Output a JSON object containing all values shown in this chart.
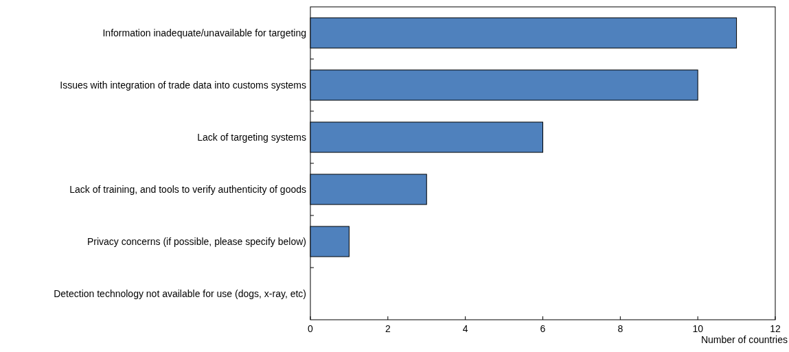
{
  "chart_data": {
    "type": "bar",
    "orientation": "horizontal",
    "xlabel": "Number of countries",
    "categories": [
      "Information inadequate/unavailable for targeting",
      "Issues with integration of trade data into customs systems",
      "Lack of targeting systems",
      "Lack of training, and tools to verify authenticity of goods",
      "Privacy concerns (if possible, please specify below)",
      "Detection technology not available for use (dogs, x-ray, etc)"
    ],
    "values": [
      11,
      10,
      6,
      3,
      1,
      0
    ],
    "color": "#4f81bd",
    "xlim": [
      0,
      12
    ],
    "xticks": [
      0,
      2,
      4,
      6,
      8,
      10,
      12
    ],
    "grid": false
  }
}
